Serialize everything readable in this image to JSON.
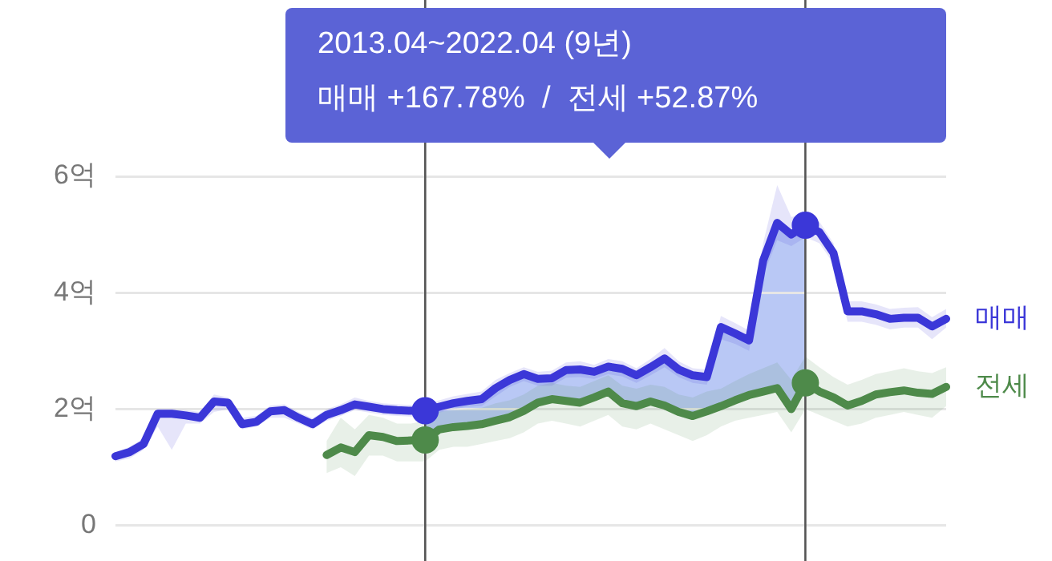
{
  "chart_data": {
    "type": "line",
    "annotations": [
      "2013.04~2022.04 (9년)",
      "매매 +167.78%  /  전세 +52.87%"
    ],
    "categories": [
      null,
      null,
      null,
      null,
      null,
      null,
      null,
      null,
      null,
      null,
      null,
      null,
      null,
      null,
      null,
      null,
      null,
      null,
      null,
      null,
      null,
      null,
      null,
      null,
      null,
      null,
      null,
      null,
      null,
      null,
      null,
      null,
      null,
      null,
      null,
      null,
      null,
      null,
      null,
      null,
      null,
      null,
      null,
      null,
      null,
      null,
      null,
      null,
      null,
      null,
      null,
      null,
      null,
      null,
      null,
      null,
      null,
      null,
      null,
      null
    ],
    "ylim": [
      0,
      6
    ],
    "yticks": [
      {
        "value": 0,
        "label": "0"
      },
      {
        "value": 2,
        "label": "2억"
      },
      {
        "value": 4,
        "label": "4억"
      },
      {
        "value": 6,
        "label": "6억"
      }
    ],
    "tick_labels": "y",
    "grid": "y",
    "legend": false,
    "series": [
      {
        "name": "매매",
        "color": "#3b37d8",
        "values": [
          1.19,
          1.26,
          1.4,
          1.92,
          1.92,
          1.89,
          1.85,
          2.13,
          2.11,
          1.74,
          1.78,
          1.96,
          1.98,
          1.85,
          1.74,
          1.9,
          1.98,
          2.08,
          2.04,
          2.0,
          1.98,
          1.97,
          1.97,
          2.04,
          2.1,
          2.14,
          2.17,
          2.36,
          2.5,
          2.6,
          2.52,
          2.53,
          2.67,
          2.68,
          2.64,
          2.73,
          2.69,
          2.58,
          2.72,
          2.87,
          2.68,
          2.58,
          2.55,
          3.41,
          3.3,
          3.18,
          4.55,
          5.2,
          5.0,
          5.16,
          5.04,
          4.68,
          3.68,
          3.68,
          3.63,
          3.55,
          3.57,
          3.57,
          3.42,
          3.55
        ],
        "lower": [
          1.1,
          1.15,
          1.3,
          1.7,
          1.3,
          1.75,
          1.75,
          1.95,
          2.0,
          1.65,
          1.7,
          1.85,
          1.85,
          1.75,
          1.65,
          1.8,
          1.88,
          1.98,
          1.94,
          1.9,
          1.88,
          1.87,
          1.87,
          1.94,
          2.0,
          2.04,
          2.05,
          2.22,
          2.38,
          2.48,
          2.4,
          2.4,
          2.54,
          2.55,
          2.52,
          2.6,
          2.56,
          2.45,
          2.58,
          2.72,
          2.55,
          2.45,
          2.42,
          3.2,
          3.12,
          3.0,
          4.3,
          4.9,
          4.8,
          4.95,
          4.85,
          4.5,
          3.5,
          3.5,
          3.45,
          3.37,
          3.4,
          3.4,
          3.2,
          3.4
        ],
        "upper": [
          1.25,
          1.35,
          1.5,
          2.0,
          2.0,
          1.98,
          1.95,
          2.25,
          2.2,
          1.85,
          1.88,
          2.06,
          2.08,
          1.95,
          1.84,
          2.0,
          2.08,
          2.2,
          2.14,
          2.1,
          2.08,
          2.07,
          2.07,
          2.15,
          2.22,
          2.26,
          2.3,
          2.5,
          2.62,
          2.72,
          2.64,
          2.66,
          2.8,
          2.82,
          2.76,
          2.86,
          2.82,
          2.7,
          2.86,
          3.05,
          2.82,
          2.7,
          2.68,
          3.6,
          3.48,
          3.35,
          4.85,
          5.85,
          5.3,
          5.35,
          5.22,
          4.85,
          3.85,
          3.85,
          3.8,
          3.72,
          3.74,
          3.75,
          3.58,
          3.72
        ]
      },
      {
        "name": "전세",
        "color": "#4e8a4a",
        "values": [
          null,
          null,
          null,
          null,
          null,
          null,
          null,
          null,
          null,
          null,
          null,
          null,
          null,
          null,
          null,
          1.21,
          1.34,
          1.26,
          1.55,
          1.52,
          1.45,
          1.46,
          1.47,
          1.65,
          1.69,
          1.71,
          1.74,
          1.8,
          1.86,
          1.97,
          2.11,
          2.17,
          2.14,
          2.11,
          2.2,
          2.3,
          2.1,
          2.05,
          2.13,
          2.06,
          1.95,
          1.88,
          1.96,
          2.05,
          2.15,
          2.24,
          2.3,
          2.36,
          2.0,
          2.45,
          2.3,
          2.2,
          2.06,
          2.14,
          2.25,
          2.29,
          2.32,
          2.28,
          2.26,
          2.38
        ],
        "lower": [
          null,
          null,
          null,
          null,
          null,
          null,
          null,
          null,
          null,
          null,
          null,
          null,
          null,
          null,
          null,
          0.9,
          1.0,
          0.85,
          1.2,
          1.2,
          1.1,
          1.1,
          1.1,
          1.3,
          1.35,
          1.35,
          1.4,
          1.45,
          1.5,
          1.6,
          1.75,
          1.8,
          1.75,
          1.7,
          1.8,
          1.9,
          1.7,
          1.65,
          1.75,
          1.65,
          1.55,
          1.45,
          1.55,
          1.7,
          1.8,
          1.85,
          1.9,
          1.95,
          1.6,
          2.0,
          1.9,
          1.8,
          1.7,
          1.75,
          1.85,
          1.9,
          1.95,
          1.9,
          1.85,
          2.05
        ],
        "upper": [
          null,
          null,
          null,
          null,
          null,
          null,
          null,
          null,
          null,
          null,
          null,
          null,
          null,
          null,
          null,
          1.45,
          1.85,
          1.65,
          1.9,
          1.85,
          1.75,
          1.75,
          1.8,
          1.95,
          1.98,
          2.0,
          2.02,
          2.1,
          2.15,
          2.25,
          2.4,
          2.45,
          2.4,
          2.38,
          2.48,
          2.58,
          2.4,
          2.35,
          2.42,
          2.38,
          2.25,
          2.2,
          2.3,
          2.35,
          2.48,
          2.6,
          2.7,
          2.8,
          2.5,
          2.9,
          2.72,
          2.55,
          2.42,
          2.5,
          2.6,
          2.65,
          2.7,
          2.65,
          2.62,
          2.72
        ]
      },
      {
        "type": "scatter",
        "color": "#3b37d8",
        "values": [
          null,
          null,
          null,
          null,
          null,
          null,
          null,
          null,
          null,
          null,
          null,
          null,
          null,
          null,
          null,
          null,
          null,
          null,
          null,
          null,
          null,
          null,
          1.97,
          null,
          null,
          null,
          null,
          null,
          null,
          null,
          null,
          null,
          null,
          null,
          null,
          null,
          null,
          null,
          null,
          null,
          null,
          null,
          null,
          null,
          null,
          null,
          null,
          null,
          null,
          5.16,
          null,
          null,
          null,
          null,
          null,
          null,
          null,
          null,
          null,
          null
        ]
      },
      {
        "type": "scatter",
        "color": "#4e8a4a",
        "values": [
          null,
          null,
          null,
          null,
          null,
          null,
          null,
          null,
          null,
          null,
          null,
          null,
          null,
          null,
          null,
          null,
          null,
          null,
          null,
          null,
          null,
          null,
          1.47,
          null,
          null,
          null,
          null,
          null,
          null,
          null,
          null,
          null,
          null,
          null,
          null,
          null,
          null,
          null,
          null,
          null,
          null,
          null,
          null,
          null,
          null,
          null,
          null,
          null,
          null,
          2.45,
          null,
          null,
          null,
          null,
          null,
          null,
          null,
          null,
          null,
          null
        ]
      }
    ]
  }
}
